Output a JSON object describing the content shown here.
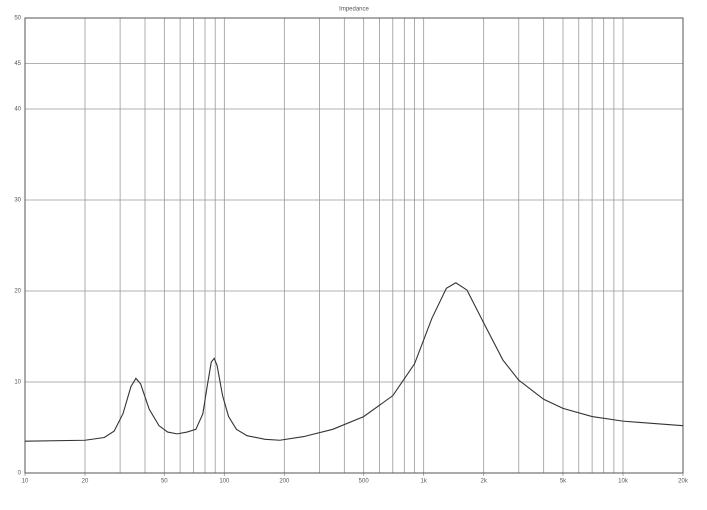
{
  "chart_data": {
    "type": "line",
    "title": "Impedance",
    "xscale": "log",
    "xlim": [
      10,
      20000
    ],
    "xticks": [
      10,
      20,
      50,
      100,
      200,
      500,
      {
        "value": 1000,
        "label": "1k"
      },
      {
        "value": 2000,
        "label": "2k"
      },
      {
        "value": 5000,
        "label": "5k"
      },
      {
        "value": 10000,
        "label": "10k"
      },
      {
        "value": 20000,
        "label": "20k"
      }
    ],
    "xgrid": [
      10,
      20,
      30,
      40,
      50,
      60,
      70,
      80,
      90,
      100,
      200,
      300,
      400,
      500,
      600,
      700,
      800,
      900,
      1000,
      2000,
      3000,
      4000,
      5000,
      6000,
      7000,
      8000,
      9000,
      10000,
      20000
    ],
    "ylim": [
      0,
      50
    ],
    "yticks": [
      0,
      10,
      20,
      30,
      40,
      45,
      50
    ],
    "grid": true,
    "series": [
      {
        "color": "#333333",
        "x": [
          10,
          20,
          25,
          28,
          31,
          34,
          36,
          38,
          42,
          47,
          52,
          58,
          65,
          72,
          78,
          82,
          86,
          89,
          92,
          98,
          105,
          115,
          130,
          160,
          190,
          250,
          350,
          500,
          700,
          900,
          1100,
          1300,
          1450,
          1650,
          2000,
          2500,
          3000,
          4000,
          5000,
          7000,
          10000,
          15000,
          20000
        ],
        "values": [
          3.5,
          3.6,
          3.9,
          4.6,
          6.5,
          9.5,
          10.4,
          9.8,
          7,
          5.2,
          4.5,
          4.3,
          4.5,
          4.8,
          6.5,
          9.5,
          12.2,
          12.6,
          11.8,
          8.5,
          6.2,
          4.8,
          4.1,
          3.7,
          3.6,
          4.0,
          4.8,
          6.2,
          8.5,
          12,
          17,
          20.3,
          20.9,
          20.1,
          16.5,
          12.4,
          10.2,
          8.1,
          7.1,
          6.2,
          5.7,
          5.4,
          5.2
        ]
      }
    ]
  }
}
